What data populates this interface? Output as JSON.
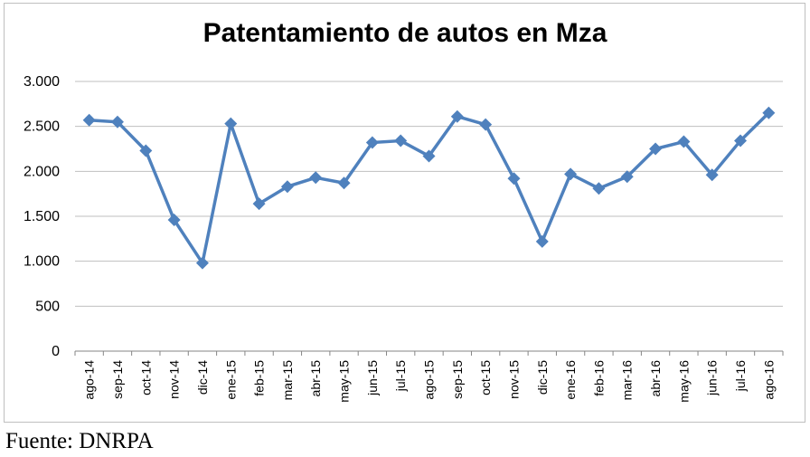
{
  "chart_data": {
    "type": "line",
    "title": "Patentamiento de autos en Mza",
    "xlabel": "",
    "ylabel": "",
    "ylim": [
      0,
      3000
    ],
    "yticks": [
      0,
      500,
      1000,
      1500,
      2000,
      2500,
      3000
    ],
    "ytick_labels": [
      "0",
      "500",
      "1.000",
      "1.500",
      "2.000",
      "2.500",
      "3.000"
    ],
    "grid": true,
    "legend": "none",
    "series_color": "#4f81bd",
    "categories": [
      "ago-14",
      "sep-14",
      "oct-14",
      "nov-14",
      "dic-14",
      "ene-15",
      "feb-15",
      "mar-15",
      "abr-15",
      "may-15",
      "jun-15",
      "jul-15",
      "ago-15",
      "sep-15",
      "oct-15",
      "nov-15",
      "dic-15",
      "ene-16",
      "feb-16",
      "mar-16",
      "abr-16",
      "may-16",
      "jun-16",
      "jul-16",
      "ago-16"
    ],
    "values": [
      2570,
      2550,
      2230,
      1460,
      980,
      2530,
      1640,
      1830,
      1930,
      1870,
      2320,
      2340,
      2170,
      2610,
      2520,
      1920,
      1220,
      1970,
      1810,
      1940,
      2250,
      2330,
      1960,
      2340,
      2650
    ]
  },
  "source_note": "Fuente: DNRPA"
}
